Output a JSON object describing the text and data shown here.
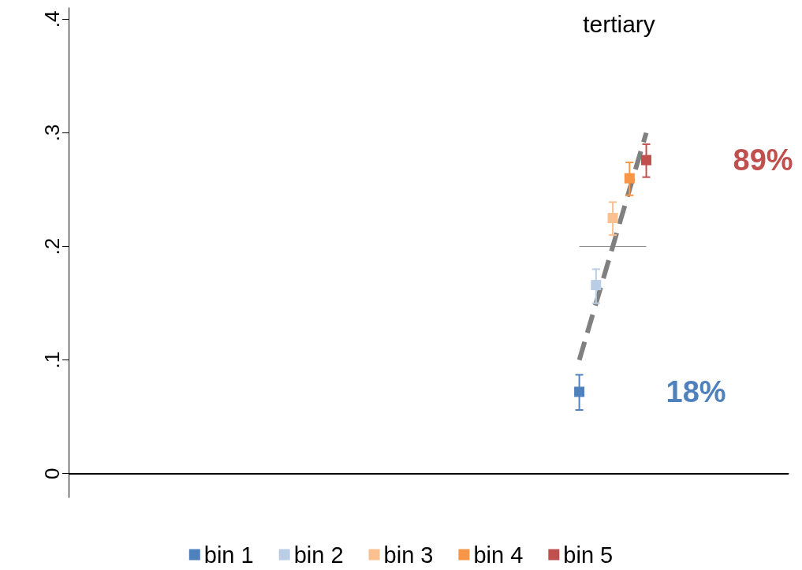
{
  "chart_data": {
    "type": "scatter",
    "title": "tertiary",
    "categories": [
      null,
      null,
      null,
      null,
      null,
      null,
      null,
      null,
      null,
      null,
      null,
      null,
      null,
      null,
      null,
      null,
      null,
      null,
      null,
      null,
      null,
      null,
      null,
      null,
      null,
      null,
      null,
      null,
      null,
      null,
      null,
      null,
      null,
      null,
      null,
      null,
      null,
      null,
      null,
      null,
      null,
      null,
      null
    ],
    "ylim": [
      -0.021,
      0.41
    ],
    "yticks": [
      0,
      {
        "value": 0.1,
        "label": ".1"
      },
      {
        "value": 0.2,
        "label": ".2"
      },
      {
        "value": 0.3,
        "label": ".3"
      },
      {
        "value": 0.4,
        "label": ".4"
      }
    ],
    "tick_labels": "y",
    "grid": false,
    "legend": "bottom",
    "marker": "square",
    "series": [
      {
        "name": "bin 1",
        "color": "#4f81bd",
        "values": [
          null,
          null,
          null,
          null,
          null,
          null,
          null,
          null,
          null,
          null,
          null,
          null,
          null,
          null,
          null,
          null,
          null,
          null,
          null,
          null,
          null,
          null,
          null,
          null,
          null,
          null,
          null,
          null,
          null,
          null,
          0.072,
          null,
          null,
          null,
          null,
          null,
          null,
          null,
          null,
          null,
          null,
          null,
          null
        ],
        "errors": [
          null,
          null,
          null,
          null,
          null,
          null,
          null,
          null,
          null,
          null,
          null,
          null,
          null,
          null,
          null,
          null,
          null,
          null,
          null,
          null,
          null,
          null,
          null,
          null,
          null,
          null,
          null,
          null,
          null,
          null,
          [
            0.056,
            0.087
          ],
          null,
          null,
          null,
          null,
          null,
          null,
          null,
          null,
          null,
          null,
          null,
          null
        ]
      },
      {
        "name": "bin 2",
        "color": "#b9cde5",
        "values": [
          null,
          null,
          null,
          null,
          null,
          null,
          null,
          null,
          null,
          null,
          null,
          null,
          null,
          null,
          null,
          null,
          null,
          null,
          null,
          null,
          null,
          null,
          null,
          null,
          null,
          null,
          null,
          null,
          null,
          null,
          null,
          0.166,
          null,
          null,
          null,
          null,
          null,
          null,
          null,
          null,
          null,
          null,
          null
        ],
        "errors": [
          null,
          null,
          null,
          null,
          null,
          null,
          null,
          null,
          null,
          null,
          null,
          null,
          null,
          null,
          null,
          null,
          null,
          null,
          null,
          null,
          null,
          null,
          null,
          null,
          null,
          null,
          null,
          null,
          null,
          null,
          null,
          [
            0.15,
            0.18
          ],
          null,
          null,
          null,
          null,
          null,
          null,
          null,
          null,
          null,
          null,
          null
        ]
      },
      {
        "name": "bin 3",
        "color": "#fac090",
        "values": [
          null,
          null,
          null,
          null,
          null,
          null,
          null,
          null,
          null,
          null,
          null,
          null,
          null,
          null,
          null,
          null,
          null,
          null,
          null,
          null,
          null,
          null,
          null,
          null,
          null,
          null,
          null,
          null,
          null,
          null,
          null,
          null,
          0.225,
          null,
          null,
          null,
          null,
          null,
          null,
          null,
          null,
          null,
          null
        ],
        "errors": [
          null,
          null,
          null,
          null,
          null,
          null,
          null,
          null,
          null,
          null,
          null,
          null,
          null,
          null,
          null,
          null,
          null,
          null,
          null,
          null,
          null,
          null,
          null,
          null,
          null,
          null,
          null,
          null,
          null,
          null,
          null,
          null,
          [
            0.21,
            0.239
          ],
          null,
          null,
          null,
          null,
          null,
          null,
          null,
          null,
          null,
          null
        ]
      },
      {
        "name": "bin 4",
        "color": "#f79646",
        "values": [
          null,
          null,
          null,
          null,
          null,
          null,
          null,
          null,
          null,
          null,
          null,
          null,
          null,
          null,
          null,
          null,
          null,
          null,
          null,
          null,
          null,
          null,
          null,
          null,
          null,
          null,
          null,
          null,
          null,
          null,
          null,
          null,
          null,
          0.26,
          null,
          null,
          null,
          null,
          null,
          null,
          null,
          null,
          null
        ],
        "errors": [
          null,
          null,
          null,
          null,
          null,
          null,
          null,
          null,
          null,
          null,
          null,
          null,
          null,
          null,
          null,
          null,
          null,
          null,
          null,
          null,
          null,
          null,
          null,
          null,
          null,
          null,
          null,
          null,
          null,
          null,
          null,
          null,
          null,
          [
            0.245,
            0.274
          ],
          null,
          null,
          null,
          null,
          null,
          null,
          null,
          null,
          null
        ]
      },
      {
        "name": "bin 5",
        "color": "#c0504d",
        "values": [
          null,
          null,
          null,
          null,
          null,
          null,
          null,
          null,
          null,
          null,
          null,
          null,
          null,
          null,
          null,
          null,
          null,
          null,
          null,
          null,
          null,
          null,
          null,
          null,
          null,
          null,
          null,
          null,
          null,
          null,
          null,
          null,
          null,
          null,
          0.276,
          null,
          null,
          null,
          null,
          null,
          null,
          null,
          null
        ],
        "errors": [
          null,
          null,
          null,
          null,
          null,
          null,
          null,
          null,
          null,
          null,
          null,
          null,
          null,
          null,
          null,
          null,
          null,
          null,
          null,
          null,
          null,
          null,
          null,
          null,
          null,
          null,
          null,
          null,
          null,
          null,
          null,
          null,
          null,
          null,
          [
            0.261,
            0.29
          ],
          null,
          null,
          null,
          null,
          null,
          null,
          null,
          null
        ]
      },
      {
        "type": "line",
        "color": "#808080",
        "line_style": "dashed",
        "marker": "none",
        "values": [
          null,
          null,
          null,
          null,
          null,
          null,
          null,
          null,
          null,
          null,
          null,
          null,
          null,
          null,
          null,
          null,
          null,
          null,
          null,
          null,
          null,
          null,
          null,
          null,
          null,
          null,
          null,
          null,
          null,
          null,
          0.1,
          null,
          null,
          null,
          0.3,
          null,
          null,
          null,
          null,
          null,
          null,
          null,
          null
        ]
      },
      {
        "type": "line",
        "color": "#808080",
        "line_style": "solid",
        "marker": "none",
        "values": [
          null,
          null,
          null,
          null,
          null,
          null,
          null,
          null,
          null,
          null,
          null,
          null,
          null,
          null,
          null,
          null,
          null,
          null,
          null,
          null,
          null,
          null,
          null,
          null,
          null,
          null,
          null,
          null,
          null,
          null,
          0.2,
          null,
          null,
          null,
          0.2,
          null,
          null,
          null,
          null,
          null,
          null,
          null,
          null
        ]
      }
    ],
    "ref_lines": [
      {
        "axis": "y",
        "value": 0,
        "color": "#000000"
      }
    ],
    "annotations": [
      "18%",
      "89%"
    ]
  }
}
